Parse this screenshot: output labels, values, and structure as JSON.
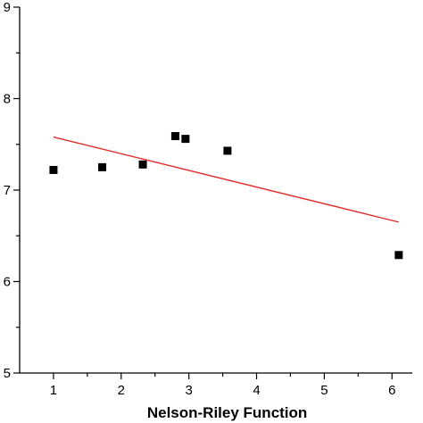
{
  "chart_data": {
    "type": "scatter",
    "title": "",
    "xlabel": "Nelson-Riley Function",
    "ylabel": "",
    "xlim": [
      0.5,
      6.3
    ],
    "ylim": [
      5,
      9
    ],
    "xticks": [
      1,
      2,
      3,
      4,
      5,
      6
    ],
    "yticks": [
      5,
      6,
      7,
      8,
      9
    ],
    "xtick_labels": [
      "1",
      "2",
      "3",
      "4",
      "5",
      "6"
    ],
    "ytick_labels": [
      "5",
      "6",
      "7",
      "8",
      "9"
    ],
    "grid": false,
    "series": [
      {
        "type": "scatter",
        "marker": "square",
        "color": "#000000",
        "x": [
          1.0,
          1.72,
          2.32,
          2.8,
          2.95,
          3.57,
          6.1
        ],
        "y": [
          7.22,
          7.25,
          7.28,
          7.59,
          7.56,
          7.43,
          6.29
        ]
      },
      {
        "type": "line",
        "fit": "linear",
        "color": "#e32b2b",
        "x": [
          1.0,
          6.1
        ],
        "y": [
          7.58,
          6.65
        ]
      }
    ]
  }
}
